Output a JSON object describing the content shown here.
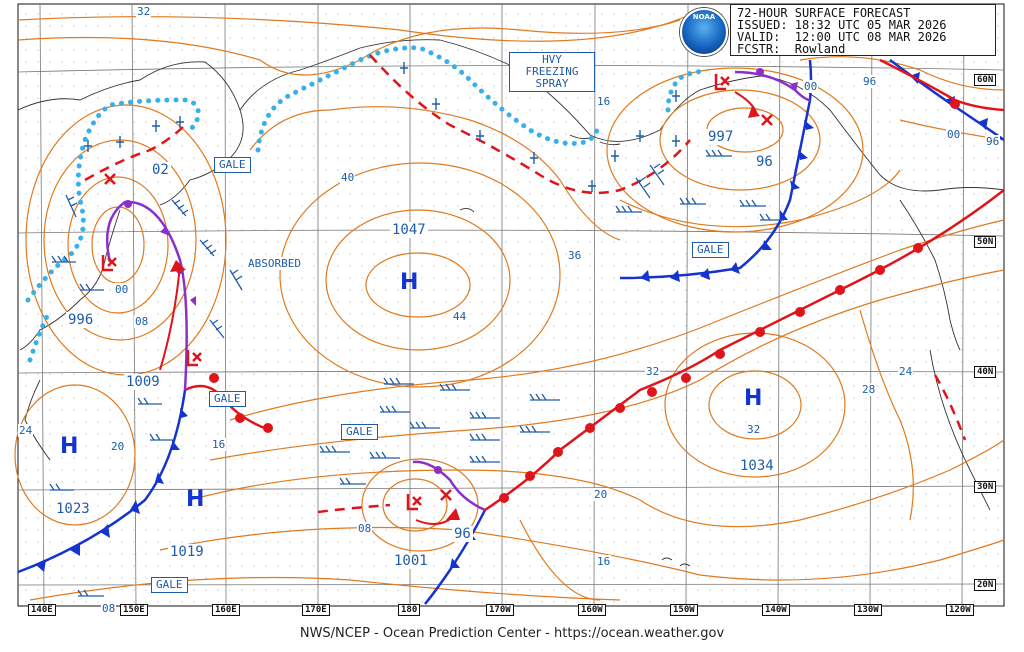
{
  "header": {
    "line1": "72-HOUR SURFACE FORECAST",
    "line2": "ISSUED: 18:32 UTC 05 MAR 2026",
    "line3": "VALID:  12:00 UTC 08 MAR 2026",
    "line4": "FCSTR:  Rowland"
  },
  "logo_text": "NOAA",
  "credit": "NWS/NCEP - Ocean Prediction Center - https://ocean.weather.gov",
  "hazard_labels": {
    "gale_1": "GALE",
    "gale_2": "GALE",
    "gale_3": "GALE",
    "gale_4": "GALE",
    "gale_5": "GALE",
    "freezing_spray_1": "HVY",
    "freezing_spray_2": "FREEZING",
    "freezing_spray_3": "SPRAY",
    "absorbed": "ABSORBED"
  },
  "pressure_centers": {
    "low_kamchatka": "02",
    "low_kurils_1": "996",
    "low_kurils_2": "00",
    "low_kurils_3": "08",
    "low_japan": "1009",
    "high_central": "1047",
    "high_central_sym": "H",
    "high_central_iso": "44",
    "low_gulf": "997",
    "low_gulf_2": "96",
    "low_gulf_3": "00",
    "low_gulf_4": "96",
    "low_gulf_5": "00",
    "high_west_sym": "H",
    "high_west_2_sym": "H",
    "high_west": "1023",
    "high_west_2": "1019",
    "low_south": "1001",
    "low_south_2": "96",
    "high_east_sym": "H",
    "high_east": "1034",
    "high_east_iso": "32"
  },
  "isobar_labels": {
    "a": "32",
    "b": "40",
    "c": "36",
    "d": "16",
    "e": "32",
    "f": "28",
    "g": "24",
    "h": "20",
    "i": "16",
    "j": "24",
    "k": "20",
    "l": "16",
    "m": "08",
    "n": "08",
    "o": "96"
  },
  "lat_labels": [
    "60N",
    "50N",
    "40N",
    "30N",
    "20N"
  ],
  "lon_labels": [
    "140E",
    "150E",
    "160E",
    "170E",
    "180",
    "170W",
    "160W",
    "150W",
    "140W",
    "130W",
    "120W"
  ],
  "colors": {
    "isobar": "#e07a1f",
    "cold_front": "#1533d0",
    "warm_front": "#e0141b",
    "occluded": "#8b2fc9",
    "ice_edge": "#3ab0e8",
    "text": "#1f5ca8",
    "grid": "#9a9a9a"
  }
}
